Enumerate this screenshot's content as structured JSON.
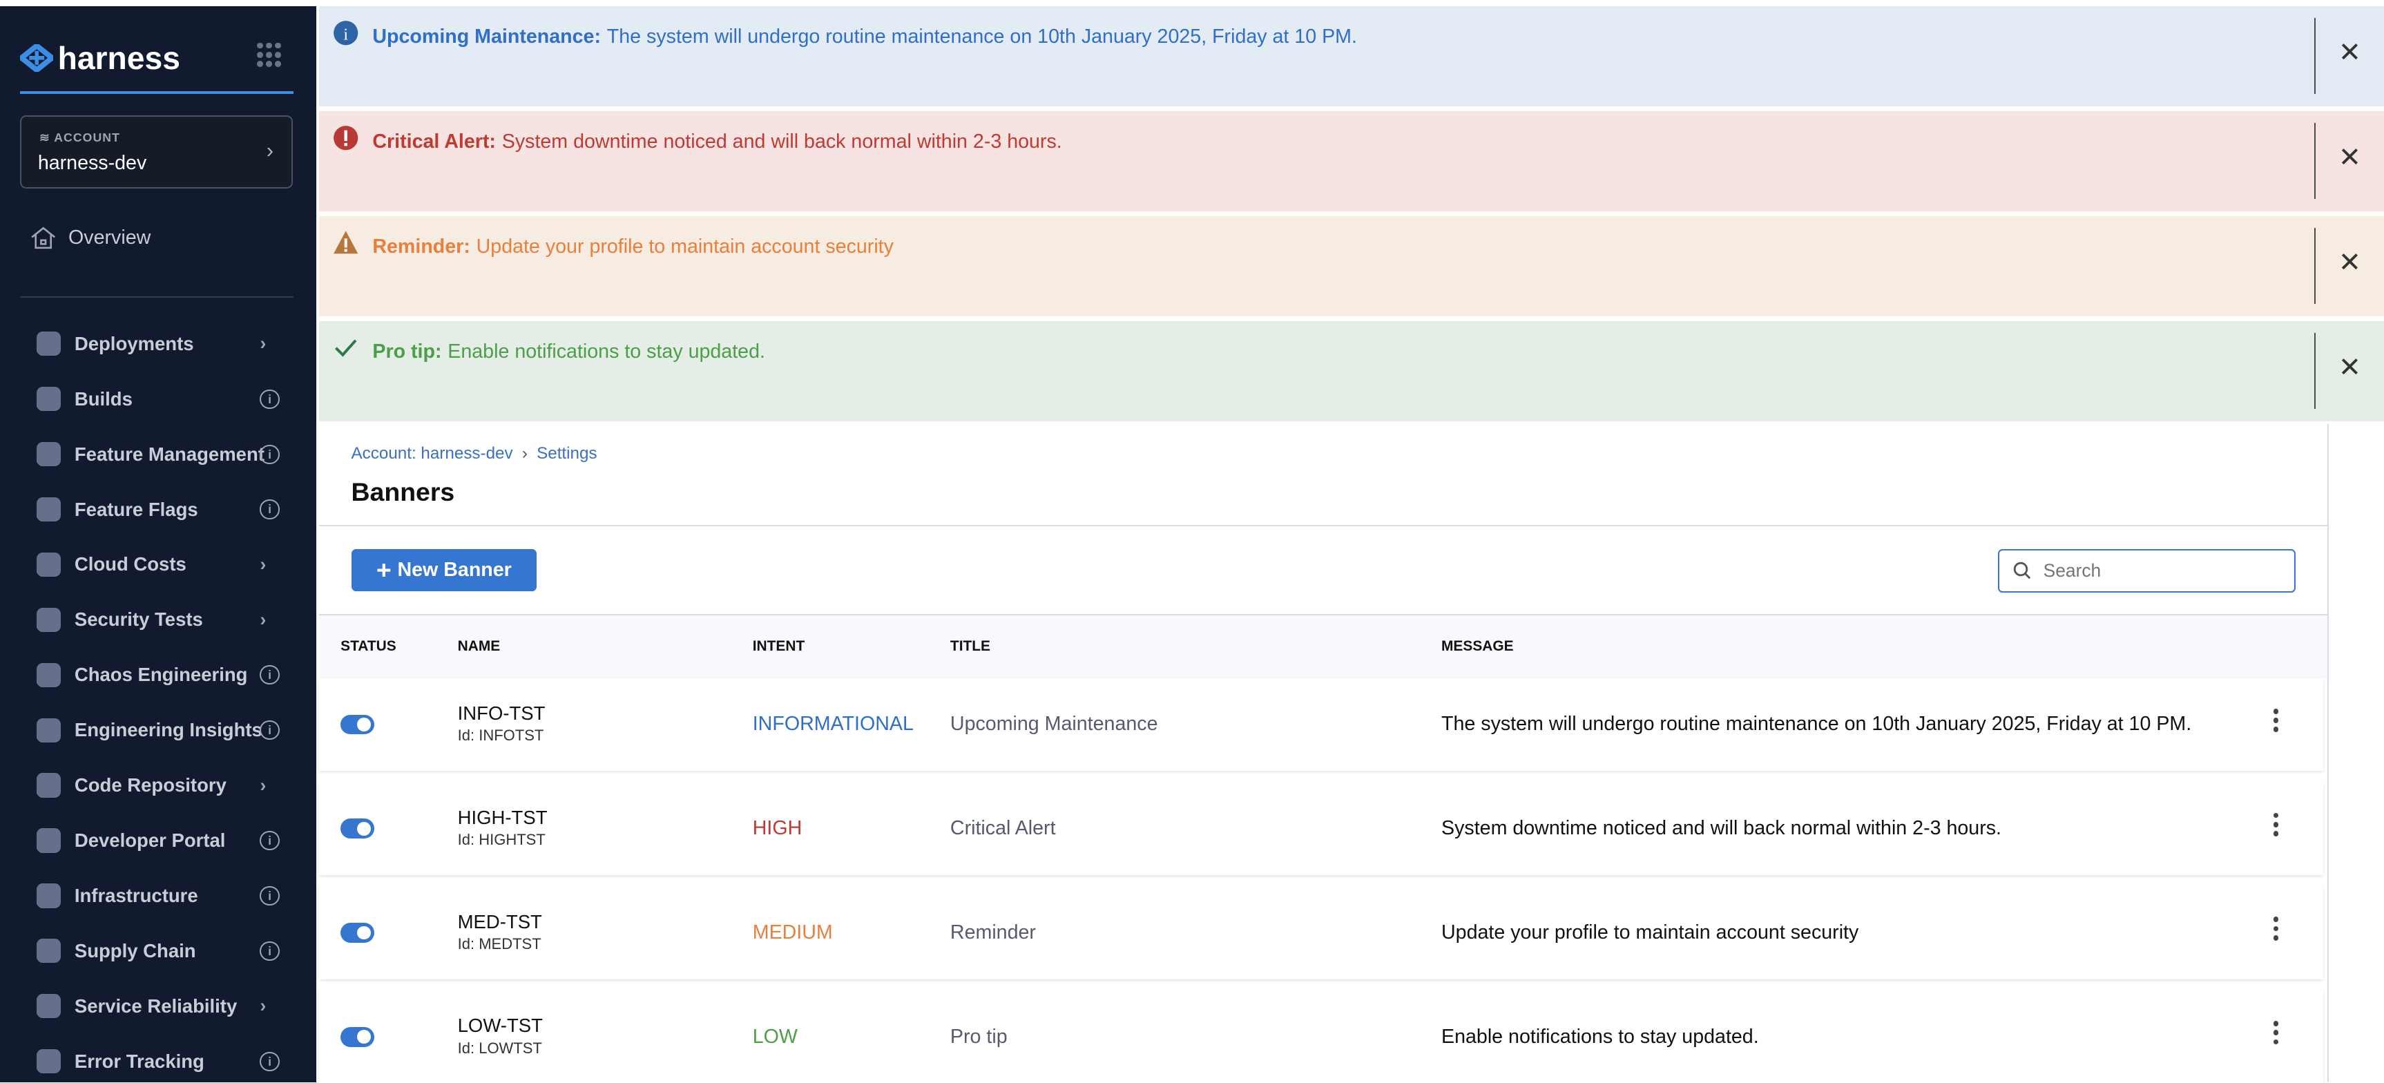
{
  "brand": {
    "name": "harness",
    "accent": "#3a8ee6"
  },
  "account": {
    "label": "ACCOUNT",
    "name": "harness-dev"
  },
  "sidebar": {
    "overview": "Overview",
    "items": [
      {
        "label": "Deployments",
        "trail": "chevron"
      },
      {
        "label": "Builds",
        "trail": "info"
      },
      {
        "label": "Feature Management",
        "trail": "info"
      },
      {
        "label": "Feature Flags",
        "trail": "info"
      },
      {
        "label": "Cloud Costs",
        "trail": "chevron"
      },
      {
        "label": "Security Tests",
        "trail": "chevron"
      },
      {
        "label": "Chaos Engineering",
        "trail": "info"
      },
      {
        "label": "Engineering Insights",
        "trail": "info"
      },
      {
        "label": "Code Repository",
        "trail": "chevron"
      },
      {
        "label": "Developer Portal",
        "trail": "info"
      },
      {
        "label": "Infrastructure",
        "trail": "info"
      },
      {
        "label": "Supply Chain",
        "trail": "info"
      },
      {
        "label": "Service Reliability",
        "trail": "chevron"
      },
      {
        "label": "Error Tracking",
        "trail": "info"
      }
    ]
  },
  "banners": [
    {
      "title": "Upcoming Maintenance:",
      "message": "The system will undergo routine maintenance on 10th January 2025, Friday at 10 PM.",
      "icon": "info-icon",
      "bg": "#e3ebf5",
      "color": "#2f6fc9"
    },
    {
      "title": "Critical Alert:",
      "message": "System downtime noticed and will back normal within 2-3 hours.",
      "icon": "error-icon",
      "bg": "#f6e3e2",
      "color": "#c13a32"
    },
    {
      "title": "Reminder:",
      "message": "Update your profile to maintain account security",
      "icon": "warning-icon",
      "bg": "#f7ece2",
      "color": "#e97f3a"
    },
    {
      "title": "Pro tip:",
      "message": "Enable notifications to stay updated.",
      "icon": "check-icon",
      "bg": "#e4eee7",
      "color": "#4d9e48"
    }
  ],
  "breadcrumb": {
    "account": "Account: harness-dev",
    "settings": "Settings"
  },
  "page": {
    "title": "Banners",
    "new_button": "New Banner",
    "search_placeholder": "Search"
  },
  "table": {
    "columns": [
      "STATUS",
      "NAME",
      "INTENT",
      "TITLE",
      "MESSAGE"
    ],
    "rows": [
      {
        "enabled": true,
        "name": "INFO-TST",
        "id": "Id: INFOTST",
        "intent": "INFORMATIONAL",
        "intent_color": "#2f6fc9",
        "title": "Upcoming Maintenance",
        "message": "The system will undergo routine maintenance on 10th January 2025, Friday at 10 PM."
      },
      {
        "enabled": true,
        "name": "HIGH-TST",
        "id": "Id: HIGHTST",
        "intent": "HIGH",
        "intent_color": "#c13a32",
        "title": "Critical Alert",
        "message": "System downtime noticed and will back normal within 2-3 hours."
      },
      {
        "enabled": true,
        "name": "MED-TST",
        "id": "Id: MEDTST",
        "intent": "MEDIUM",
        "intent_color": "#e97f3a",
        "title": "Reminder",
        "message": "Update your profile to maintain account security"
      },
      {
        "enabled": true,
        "name": "LOW-TST",
        "id": "Id: LOWTST",
        "intent": "LOW",
        "intent_color": "#4d9e48",
        "title": "Pro tip",
        "message": "Enable notifications to stay updated."
      }
    ]
  }
}
